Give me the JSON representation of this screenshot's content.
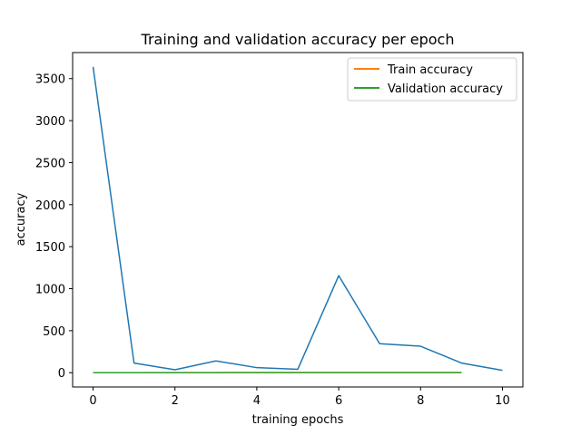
{
  "chart_data": {
    "type": "line",
    "title": "Training and validation accuracy per epoch",
    "xlabel": "training epochs",
    "ylabel": "accuracy",
    "xlim": [
      -0.5,
      10.5
    ],
    "ylim": [
      -170,
      3810
    ],
    "xticks": [
      0,
      2,
      4,
      6,
      8,
      10
    ],
    "yticks": [
      0,
      500,
      1000,
      1500,
      2000,
      2500,
      3000,
      3500
    ],
    "grid": false,
    "legend_position": "top-right",
    "series": [
      {
        "color": "#1f77b4",
        "x": [
          0,
          1,
          2,
          3,
          4,
          5,
          6,
          7,
          8,
          9,
          10
        ],
        "values": [
          3640,
          115,
          35,
          140,
          60,
          40,
          1155,
          345,
          315,
          115,
          28
        ]
      },
      {
        "name": "Train accuracy",
        "color": "#ff7f0e",
        "x": [
          0,
          1,
          2,
          3,
          4,
          5,
          6,
          7,
          8,
          9
        ],
        "values": [
          0.4,
          0.5,
          0.6,
          0.65,
          0.7,
          0.72,
          0.75,
          0.78,
          0.8,
          0.82
        ]
      },
      {
        "name": "Validation accuracy",
        "color": "#2ca02c",
        "x": [
          0,
          1,
          2,
          3,
          4,
          5,
          6,
          7,
          8,
          9
        ],
        "values": [
          0.4,
          0.45,
          0.5,
          0.55,
          0.6,
          0.6,
          0.62,
          0.63,
          0.65,
          0.66
        ]
      }
    ],
    "legend": [
      "Train accuracy",
      "Validation accuracy"
    ]
  }
}
